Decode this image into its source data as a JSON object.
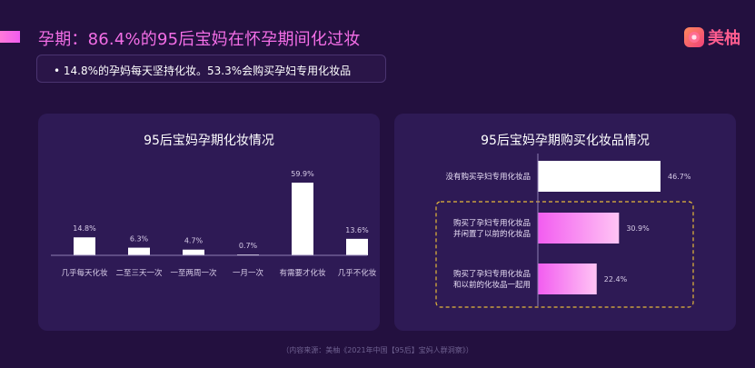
{
  "page": {
    "title": "孕期：86.4%的95后宝妈在怀孕期间化过妆",
    "subtitle": "• 14.8%的孕妈每天坚持化妆。53.3%会购买孕妇专用化妆品",
    "brand": "美柚",
    "footer": "（内容来源：美柚《2021年中国【95后】宝妈人群洞察》）",
    "colors": {
      "background": "#23103f",
      "panel": "#2e1a55",
      "accent": "#f36ee6",
      "bar": "#ffffff",
      "highlight_border": "#e6b93a"
    }
  },
  "chart_data": [
    {
      "type": "bar",
      "title": "95后宝妈孕期化妆情况",
      "categories": [
        "几乎每天化妆",
        "二至三天一次",
        "一至两周一次",
        "一月一次",
        "有需要才化妆",
        "几乎不化妆"
      ],
      "values": [
        14.8,
        6.3,
        4.7,
        0.7,
        59.9,
        13.6
      ],
      "value_labels": [
        "14.8%",
        "6.3%",
        "4.7%",
        "0.7%",
        "59.9%",
        "13.6%"
      ],
      "ylim": [
        0,
        59.9
      ]
    },
    {
      "type": "bar",
      "orientation": "horizontal",
      "title": "95后宝妈孕期购买化妆品情况",
      "categories": [
        "没有购买孕妇专用化妆品",
        "购买了孕妇专用化妆品\n并闲置了以前的化妆品",
        "购买了孕妇专用化妆品\n和以前的化妆品一起用"
      ],
      "values": [
        46.7,
        30.9,
        22.4
      ],
      "value_labels": [
        "46.7%",
        "30.9%",
        "22.4%"
      ],
      "xlim": [
        0,
        46.7
      ],
      "highlighted": [
        1,
        2
      ]
    }
  ]
}
